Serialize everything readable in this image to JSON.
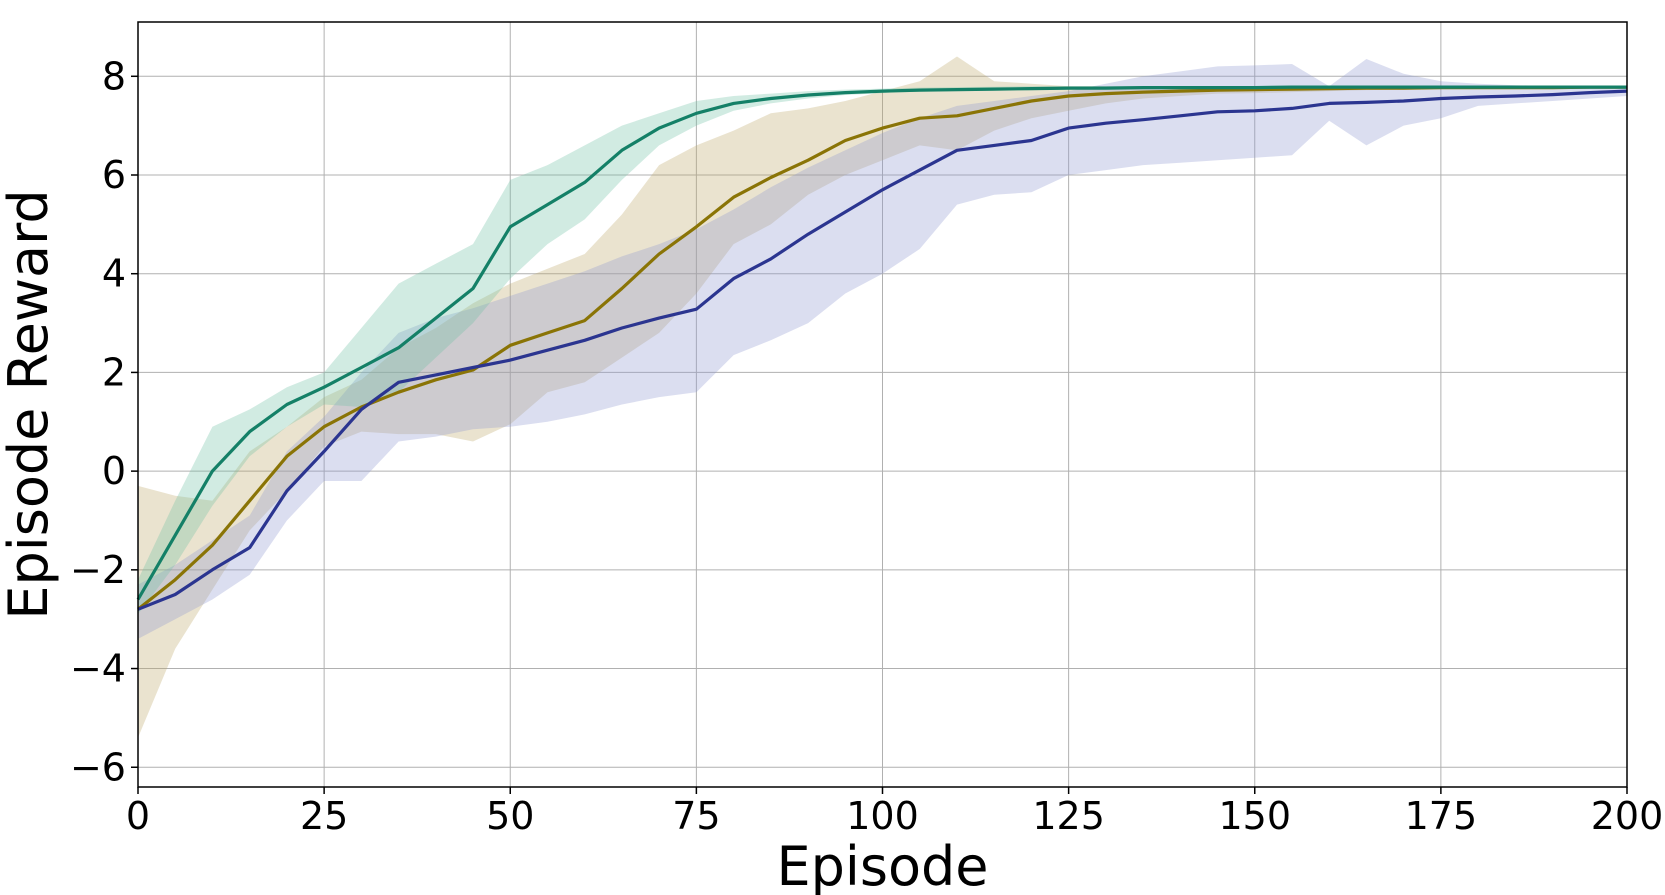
{
  "chart_data": {
    "type": "line",
    "xlabel": "Episode",
    "ylabel": "Episode Reward",
    "xlim": [
      0,
      200
    ],
    "ylim": [
      -6.4,
      9.1
    ],
    "xticks": [
      0,
      25,
      50,
      75,
      100,
      125,
      150,
      175,
      200
    ],
    "yticks": [
      -6,
      -4,
      -2,
      0,
      2,
      4,
      6,
      8
    ],
    "xtick_labels": [
      "0",
      "25",
      "50",
      "75",
      "100",
      "125",
      "150",
      "175",
      "200"
    ],
    "ytick_labels": [
      "−6",
      "−4",
      "−2",
      "0",
      "2",
      "4",
      "6",
      "8"
    ],
    "grid": true,
    "legend": false,
    "series": [
      {
        "color": "#bfa86a",
        "line_color": "#8a7406",
        "band_opacity": 0.32,
        "x": [
          0,
          5,
          10,
          15,
          20,
          25,
          30,
          35,
          40,
          45,
          50,
          55,
          60,
          65,
          70,
          75,
          80,
          85,
          90,
          95,
          100,
          105,
          110,
          115,
          120,
          125,
          130,
          135,
          140,
          145,
          150,
          155,
          160,
          165,
          170,
          175,
          180,
          185,
          190,
          195,
          200
        ],
        "y": [
          -2.8,
          -2.2,
          -1.5,
          -0.6,
          0.3,
          0.9,
          1.3,
          1.6,
          1.85,
          2.05,
          2.55,
          2.8,
          3.05,
          3.7,
          4.4,
          4.95,
          5.55,
          5.95,
          6.3,
          6.7,
          6.95,
          7.15,
          7.2,
          7.35,
          7.5,
          7.6,
          7.65,
          7.68,
          7.7,
          7.72,
          7.73,
          7.74,
          7.75,
          7.76,
          7.76,
          7.77,
          7.77,
          7.77,
          7.77,
          7.78,
          7.78
        ],
        "lower": [
          -5.4,
          -3.6,
          -2.4,
          -1.2,
          -0.4,
          0.5,
          0.8,
          0.75,
          0.75,
          0.6,
          0.95,
          1.6,
          1.8,
          2.3,
          2.8,
          3.6,
          4.6,
          5.0,
          5.6,
          6.0,
          6.3,
          6.6,
          6.5,
          6.9,
          7.15,
          7.3,
          7.45,
          7.55,
          7.6,
          7.65,
          7.66,
          7.68,
          7.7,
          7.72,
          7.73,
          7.74,
          7.75,
          7.75,
          7.76,
          7.76,
          7.77
        ],
        "upper": [
          -0.3,
          -0.5,
          -0.6,
          0.4,
          0.9,
          1.5,
          1.85,
          2.5,
          2.9,
          3.4,
          3.8,
          4.1,
          4.4,
          5.2,
          6.2,
          6.6,
          6.9,
          7.25,
          7.35,
          7.5,
          7.7,
          7.9,
          8.4,
          7.9,
          7.85,
          7.8,
          7.8,
          7.8,
          7.8,
          7.8,
          7.8,
          7.8,
          7.8,
          7.8,
          7.8,
          7.8,
          7.8,
          7.8,
          7.8,
          7.8,
          7.8
        ]
      },
      {
        "color": "#8e97cf",
        "line_color": "#2b3590",
        "band_opacity": 0.32,
        "x": [
          0,
          5,
          10,
          15,
          20,
          25,
          30,
          35,
          40,
          45,
          50,
          55,
          60,
          65,
          70,
          75,
          80,
          85,
          90,
          95,
          100,
          105,
          110,
          115,
          120,
          125,
          130,
          135,
          140,
          145,
          150,
          155,
          160,
          165,
          170,
          175,
          180,
          185,
          190,
          195,
          200
        ],
        "y": [
          -2.8,
          -2.5,
          -2.0,
          -1.55,
          -0.4,
          0.4,
          1.25,
          1.8,
          1.95,
          2.1,
          2.25,
          2.45,
          2.65,
          2.9,
          3.1,
          3.28,
          3.9,
          4.3,
          4.8,
          5.25,
          5.7,
          6.1,
          6.5,
          6.6,
          6.7,
          6.95,
          7.05,
          7.12,
          7.2,
          7.28,
          7.3,
          7.35,
          7.45,
          7.47,
          7.5,
          7.55,
          7.58,
          7.6,
          7.63,
          7.67,
          7.7
        ],
        "lower": [
          -3.4,
          -3.0,
          -2.6,
          -2.1,
          -1.0,
          -0.2,
          -0.2,
          0.6,
          0.7,
          0.85,
          0.9,
          1.0,
          1.15,
          1.35,
          1.5,
          1.6,
          2.35,
          2.65,
          3.0,
          3.6,
          4.0,
          4.5,
          5.4,
          5.6,
          5.65,
          6.0,
          6.1,
          6.2,
          6.25,
          6.3,
          6.35,
          6.4,
          7.1,
          6.6,
          7.0,
          7.15,
          7.4,
          7.45,
          7.5,
          7.55,
          7.6
        ],
        "upper": [
          -2.3,
          -1.9,
          -1.4,
          -0.9,
          0.4,
          1.1,
          2.0,
          2.8,
          3.1,
          3.3,
          3.55,
          3.8,
          4.05,
          4.35,
          4.6,
          4.9,
          5.3,
          5.75,
          6.15,
          6.5,
          6.85,
          7.15,
          7.4,
          7.5,
          7.6,
          7.7,
          7.85,
          8.0,
          8.1,
          8.2,
          8.22,
          8.25,
          7.8,
          8.35,
          8.05,
          7.9,
          7.85,
          7.82,
          7.8,
          7.8,
          7.8
        ]
      },
      {
        "color": "#6fc2a5",
        "line_color": "#148067",
        "band_opacity": 0.32,
        "x": [
          0,
          5,
          10,
          15,
          20,
          25,
          30,
          35,
          40,
          45,
          50,
          55,
          60,
          65,
          70,
          75,
          80,
          85,
          90,
          95,
          100,
          105,
          110,
          115,
          120,
          125,
          130,
          135,
          140,
          145,
          150,
          155,
          160,
          165,
          170,
          175,
          180,
          185,
          190,
          195,
          200
        ],
        "y": [
          -2.6,
          -1.3,
          0.0,
          0.8,
          1.35,
          1.7,
          2.1,
          2.5,
          3.1,
          3.7,
          4.95,
          5.4,
          5.85,
          6.5,
          6.95,
          7.25,
          7.45,
          7.55,
          7.62,
          7.67,
          7.7,
          7.72,
          7.73,
          7.74,
          7.75,
          7.76,
          7.76,
          7.77,
          7.77,
          7.77,
          7.77,
          7.78,
          7.78,
          7.78,
          7.78,
          7.78,
          7.78,
          7.78,
          7.78,
          7.78,
          7.78
        ],
        "lower": [
          -2.9,
          -1.9,
          -0.7,
          0.3,
          0.9,
          1.35,
          1.3,
          1.6,
          2.3,
          3.0,
          3.9,
          4.6,
          5.1,
          5.9,
          6.6,
          7.0,
          7.3,
          7.45,
          7.55,
          7.62,
          7.66,
          7.69,
          7.7,
          7.71,
          7.72,
          7.73,
          7.74,
          7.75,
          7.75,
          7.76,
          7.76,
          7.76,
          7.77,
          7.77,
          7.77,
          7.77,
          7.77,
          7.77,
          7.77,
          7.77,
          7.77
        ],
        "upper": [
          -2.2,
          -0.6,
          0.9,
          1.25,
          1.7,
          2.0,
          2.9,
          3.8,
          4.2,
          4.6,
          5.9,
          6.2,
          6.6,
          7.0,
          7.25,
          7.5,
          7.6,
          7.65,
          7.7,
          7.73,
          7.75,
          7.77,
          7.78,
          7.79,
          7.8,
          7.8,
          7.8,
          7.8,
          7.8,
          7.8,
          7.8,
          7.8,
          7.8,
          7.8,
          7.8,
          7.8,
          7.8,
          7.8,
          7.8,
          7.8,
          7.8
        ]
      }
    ]
  }
}
